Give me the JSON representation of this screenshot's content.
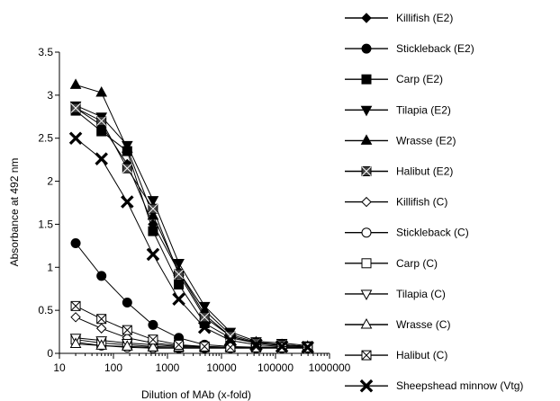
{
  "chart_data": {
    "type": "line",
    "title": "",
    "xlabel": "Dilution of MAb (x-fold)",
    "ylabel": "Absorbance at  492 nm",
    "xscale": "log",
    "xlim": [
      10,
      1000000
    ],
    "ylim": [
      0,
      3.5
    ],
    "grid": false,
    "legend_placement": "right",
    "x_ticks": [
      10,
      100,
      1000,
      10000,
      100000,
      1000000
    ],
    "x_tick_labels": [
      "10",
      "100",
      "1000",
      "10000",
      "100000",
      "1000000"
    ],
    "y_ticks": [
      0,
      0.5,
      1,
      1.5,
      2,
      2.5,
      3,
      3.5
    ],
    "y_tick_labels": [
      "0",
      "0.5",
      "1",
      "1.5",
      "2",
      "2.5",
      "3",
      "3.5"
    ],
    "x": [
      20,
      60,
      180,
      540,
      1620,
      4860,
      14580,
      43740,
      131220,
      393660
    ],
    "series": [
      {
        "name": "Killifish (E2)",
        "marker": "diamond",
        "filled": true,
        "values": [
          2.85,
          2.65,
          2.2,
          1.5,
          0.95,
          0.45,
          0.2,
          0.12,
          0.1,
          0.08
        ]
      },
      {
        "name": "Stickleback (E2)",
        "marker": "circle",
        "filled": true,
        "values": [
          1.28,
          0.9,
          0.59,
          0.33,
          0.18,
          0.1,
          0.08,
          0.07,
          0.07,
          0.07
        ]
      },
      {
        "name": "Carp (E2)",
        "marker": "square",
        "filled": true,
        "values": [
          2.82,
          2.58,
          2.35,
          1.42,
          0.8,
          0.35,
          0.18,
          0.12,
          0.09,
          0.08
        ]
      },
      {
        "name": "Tilapia (E2)",
        "marker": "triangle-down",
        "filled": true,
        "values": [
          2.88,
          2.75,
          2.42,
          1.78,
          1.05,
          0.55,
          0.25,
          0.14,
          0.12,
          0.09
        ]
      },
      {
        "name": "Wrasse (E2)",
        "marker": "triangle-up",
        "filled": true,
        "values": [
          3.12,
          3.03,
          2.38,
          1.6,
          0.95,
          0.5,
          0.22,
          0.13,
          0.1,
          0.08
        ]
      },
      {
        "name": "Halibut (E2)",
        "marker": "square-x",
        "filled": true,
        "values": [
          2.85,
          2.7,
          2.15,
          1.68,
          0.92,
          0.42,
          0.2,
          0.12,
          0.1,
          0.08
        ]
      },
      {
        "name": "Killifish (C)",
        "marker": "diamond",
        "filled": false,
        "values": [
          0.42,
          0.29,
          0.18,
          0.12,
          0.09,
          0.08,
          0.07,
          0.07,
          0.07,
          0.07
        ]
      },
      {
        "name": "Stickleback (C)",
        "marker": "circle",
        "filled": false,
        "values": [
          0.13,
          0.09,
          0.07,
          0.06,
          0.06,
          0.06,
          0.06,
          0.06,
          0.06,
          0.06
        ]
      },
      {
        "name": "Carp (C)",
        "marker": "square",
        "filled": false,
        "values": [
          0.16,
          0.12,
          0.1,
          0.08,
          0.07,
          0.07,
          0.07,
          0.07,
          0.07,
          0.07
        ]
      },
      {
        "name": "Tilapia (C)",
        "marker": "triangle-down",
        "filled": false,
        "values": [
          0.18,
          0.15,
          0.12,
          0.1,
          0.08,
          0.07,
          0.07,
          0.07,
          0.07,
          0.07
        ]
      },
      {
        "name": "Wrasse (C)",
        "marker": "triangle-up",
        "filled": false,
        "values": [
          0.11,
          0.09,
          0.08,
          0.07,
          0.07,
          0.07,
          0.07,
          0.07,
          0.07,
          0.07
        ]
      },
      {
        "name": "Halibut (C)",
        "marker": "square-x",
        "filled": false,
        "values": [
          0.55,
          0.4,
          0.27,
          0.16,
          0.1,
          0.08,
          0.07,
          0.07,
          0.07,
          0.07
        ]
      },
      {
        "name": "Sheepshead minnow (Vtg)",
        "marker": "x",
        "filled": true,
        "values": [
          2.5,
          2.26,
          1.76,
          1.15,
          0.63,
          0.3,
          0.15,
          0.1,
          0.08,
          0.07
        ]
      }
    ]
  }
}
